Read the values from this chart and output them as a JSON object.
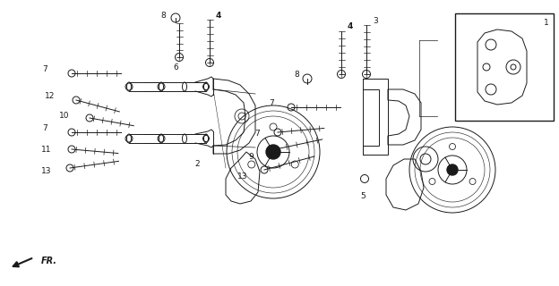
{
  "bg_color": "#f5f5f5",
  "line_color": "#1a1a1a",
  "fig_width": 6.24,
  "fig_height": 3.2,
  "dpi": 100,
  "border_color": "#cccccc"
}
